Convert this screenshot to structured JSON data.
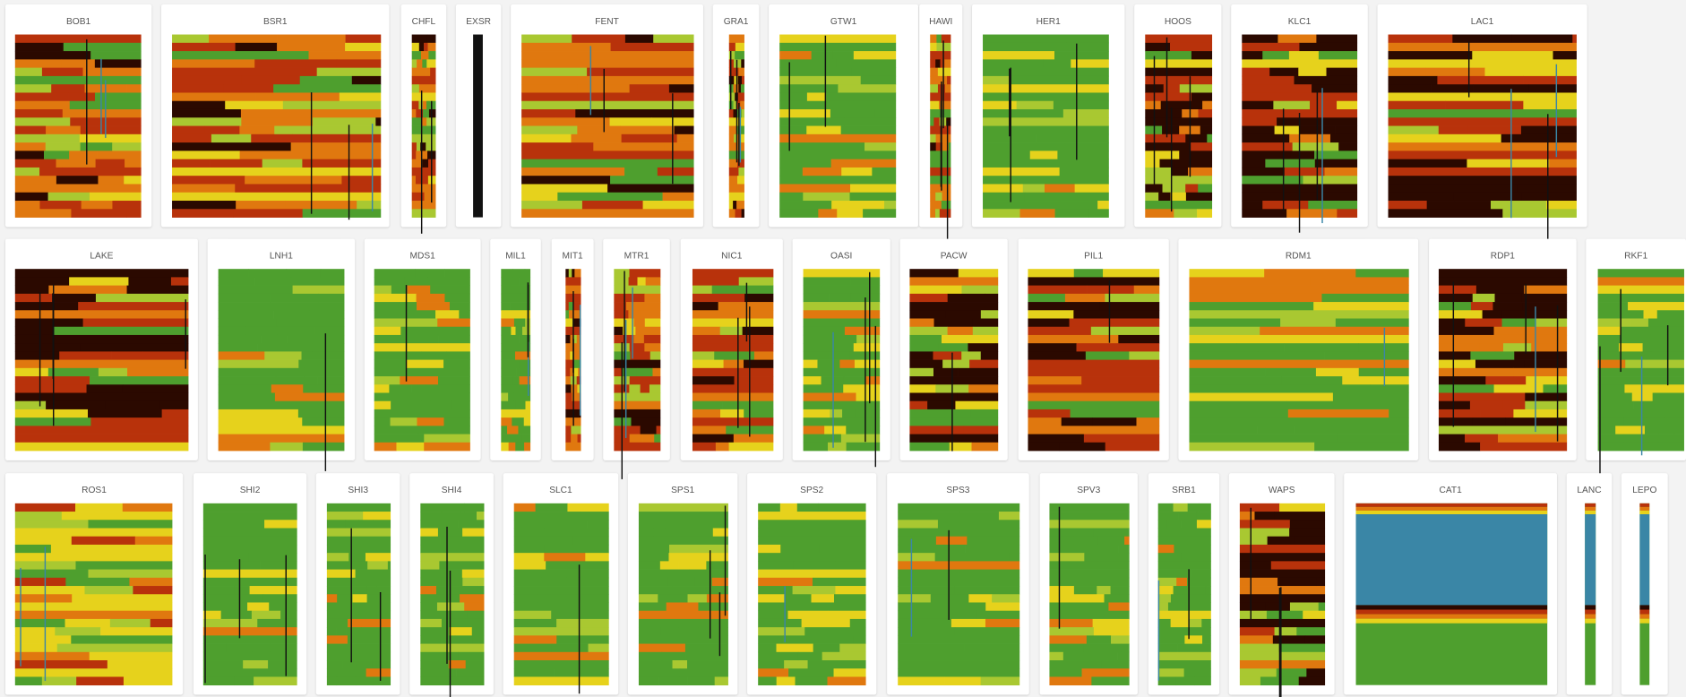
{
  "rows": [
    {
      "cards": [
        {
          "label": "BOB1"
        },
        {
          "label": "BSR1"
        },
        {
          "label": "CHFL"
        },
        {
          "label": "EXSR"
        },
        {
          "label": "FENT"
        },
        {
          "label": "GRA1"
        },
        {
          "label": "GTW1"
        },
        {
          "label": "HAWI"
        },
        {
          "label": "HER1"
        },
        {
          "label": "HOOS"
        },
        {
          "label": "KLC1"
        },
        {
          "label": "LAC1"
        }
      ]
    },
    {
      "cards": [
        {
          "label": "LAKE"
        },
        {
          "label": "LNH1"
        },
        {
          "label": "MDS1"
        },
        {
          "label": "MIL1"
        },
        {
          "label": "MIT1"
        },
        {
          "label": "MTR1"
        },
        {
          "label": "NIC1"
        },
        {
          "label": "OASI"
        },
        {
          "label": "PACW"
        },
        {
          "label": "PIL1"
        },
        {
          "label": "RDM1"
        },
        {
          "label": "RDP1"
        },
        {
          "label": "RKF1"
        }
      ]
    },
    {
      "cards": [
        {
          "label": "ROS1"
        },
        {
          "label": "SHI2"
        },
        {
          "label": "SHI3"
        },
        {
          "label": "SHI4"
        },
        {
          "label": "SLC1"
        },
        {
          "label": "SPS1"
        },
        {
          "label": "SPS2"
        },
        {
          "label": "SPS3"
        },
        {
          "label": "SPV3"
        },
        {
          "label": "SRB1"
        },
        {
          "label": "WAPS"
        },
        {
          "label": "CAT1"
        },
        {
          "label": "LANC"
        },
        {
          "label": "LEPO"
        }
      ]
    }
  ]
}
